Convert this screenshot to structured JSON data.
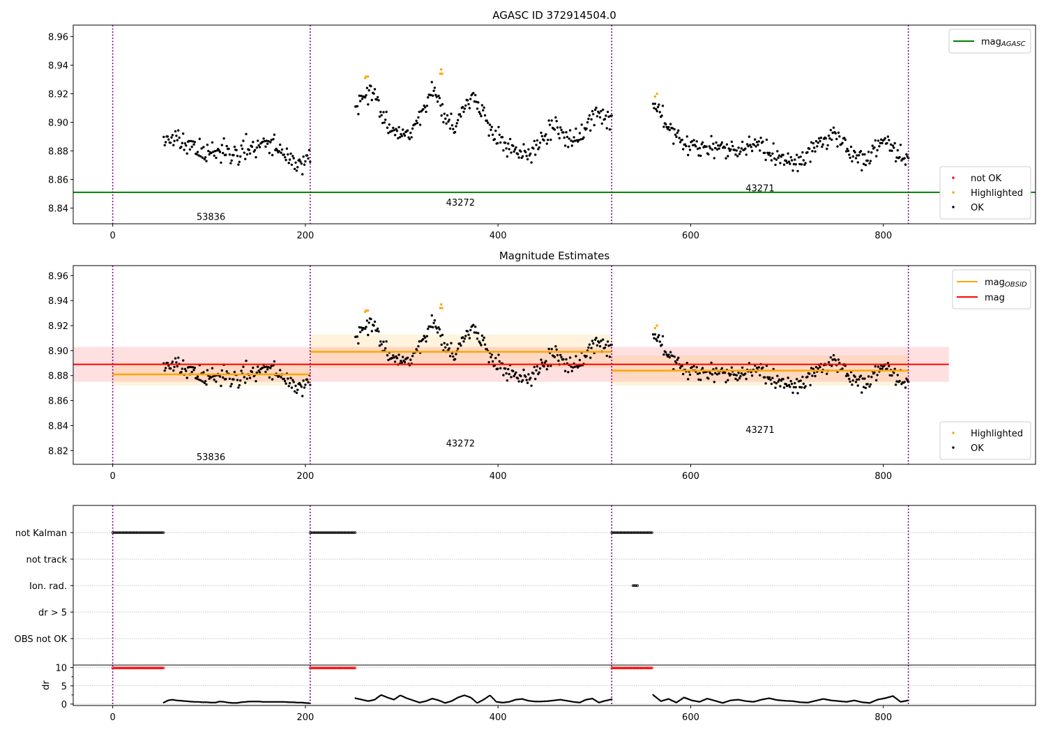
{
  "chart_data": [
    {
      "type": "scatter",
      "title": "AGASC ID 372914504.0",
      "xlim": [
        -41,
        958
      ],
      "ylim": [
        8.829,
        8.968
      ],
      "xticks": [
        0,
        200,
        400,
        600,
        800
      ],
      "yticks": [
        8.84,
        8.86,
        8.88,
        8.9,
        8.92,
        8.94,
        8.96
      ],
      "ytick_labels": [
        "8.84",
        "8.86",
        "8.88",
        "8.90",
        "8.92",
        "8.94",
        "8.96"
      ],
      "xtick_labels": [
        "0",
        "200",
        "400",
        "600",
        "800"
      ],
      "mag_agasc": 8.851,
      "obsid_boundaries": [
        0,
        205,
        518,
        826
      ],
      "obsid_labels": [
        {
          "text": "53836",
          "x": 102,
          "y": 8.834
        },
        {
          "text": "43272",
          "x": 361,
          "y": 8.844
        },
        {
          "text": "43271",
          "x": 672,
          "y": 8.854
        }
      ],
      "legend_lines": [
        {
          "label": "mag",
          "sub": "AGASC",
          "color": "#008000"
        }
      ],
      "legend_points": [
        {
          "label": "not OK",
          "color": "#ff0000"
        },
        {
          "label": "Highlighted",
          "color": "#ffa500"
        },
        {
          "label": "OK",
          "color": "#000000"
        }
      ]
    },
    {
      "type": "scatter",
      "title": "Magnitude Estimates",
      "xlim": [
        -41,
        958
      ],
      "ylim": [
        8.809,
        8.968
      ],
      "xticks": [
        0,
        200,
        400,
        600,
        800
      ],
      "xtick_labels": [
        "0",
        "200",
        "400",
        "600",
        "800"
      ],
      "yticks": [
        8.82,
        8.84,
        8.86,
        8.88,
        8.9,
        8.92,
        8.94,
        8.96
      ],
      "ytick_labels": [
        "8.82",
        "8.84",
        "8.86",
        "8.88",
        "8.90",
        "8.92",
        "8.94",
        "8.96"
      ],
      "mag": 8.889,
      "mag_band": [
        8.875,
        8.903
      ],
      "mag_extent": [
        -41,
        868
      ],
      "obsid_means": [
        {
          "x0": 0,
          "x1": 205,
          "mag": 8.881,
          "band": [
            8.872,
            8.89
          ]
        },
        {
          "x0": 205,
          "x1": 518,
          "mag": 8.899,
          "band": [
            8.886,
            8.913
          ]
        },
        {
          "x0": 518,
          "x1": 826,
          "mag": 8.884,
          "band": [
            8.872,
            8.896
          ]
        }
      ],
      "obsid_boundaries": [
        0,
        205,
        518,
        826
      ],
      "obsid_labels": [
        {
          "text": "53836",
          "x": 102,
          "y": 8.815
        },
        {
          "text": "43272",
          "x": 361,
          "y": 8.826
        },
        {
          "text": "43271",
          "x": 672,
          "y": 8.837
        }
      ],
      "legend_lines": [
        {
          "label": "mag",
          "sub": "OBSID",
          "color": "#ffa500"
        },
        {
          "label": "mag",
          "sub": "",
          "color": "#ff0000"
        }
      ],
      "legend_points": [
        {
          "label": "Highlighted",
          "color": "#ffa500"
        },
        {
          "label": "OK",
          "color": "#000000"
        }
      ]
    },
    {
      "type": "scatter",
      "title": "",
      "flag_rows": [
        "not Kalman",
        "not track",
        "Ion. rad.",
        "dr > 5",
        "OBS not OK"
      ],
      "flag_ranges": [
        {
          "row": "not Kalman",
          "segments": [
            [
              0,
              53
            ],
            [
              205,
              252
            ],
            [
              518,
              561
            ]
          ]
        },
        {
          "row": "Ion. rad.",
          "segments": [
            [
              540,
              546
            ]
          ]
        }
      ],
      "dr_ylabel": "dr",
      "dr_yticks": [
        0,
        5,
        10
      ],
      "dr_ytick_labels": [
        "0",
        "5",
        "10"
      ],
      "dr_ylim": [
        -0.4,
        10.7
      ],
      "dr_clipped_ranges": [
        [
          0,
          53
        ],
        [
          205,
          252
        ],
        [
          518,
          561
        ]
      ],
      "xticks": [
        0,
        200,
        400,
        600,
        800
      ],
      "xtick_labels": [
        "0",
        "200",
        "400",
        "600",
        "800"
      ],
      "obsid_boundaries": [
        0,
        205,
        518,
        826
      ]
    }
  ],
  "series": {
    "seg1": {
      "x0": 53,
      "x1": 205,
      "n": 152,
      "base": [
        8.887,
        8.888,
        8.889,
        8.887,
        8.886,
        8.885,
        8.884,
        8.882,
        8.88,
        8.879,
        8.878,
        8.879,
        8.88,
        8.881,
        8.88,
        8.879,
        8.878,
        8.878,
        8.879,
        8.88,
        8.882,
        8.884,
        8.885,
        8.886,
        8.886,
        8.885,
        8.883,
        8.88,
        8.876,
        8.872,
        8.87,
        8.87,
        8.872,
        8.874,
        8.875
      ],
      "noise": 0.007,
      "seed": 11
    },
    "seg2": {
      "x0": 252,
      "x1": 518,
      "n": 266,
      "base": [
        8.908,
        8.915,
        8.922,
        8.918,
        8.905,
        8.897,
        8.893,
        8.892,
        8.895,
        8.9,
        8.905,
        8.915,
        8.922,
        8.91,
        8.9,
        8.898,
        8.905,
        8.915,
        8.918,
        8.91,
        8.9,
        8.893,
        8.889,
        8.885,
        8.882,
        8.88,
        8.878,
        8.88,
        8.885,
        8.892,
        8.897,
        8.895,
        8.888,
        8.885,
        8.89,
        8.897,
        8.903,
        8.905,
        8.903,
        8.902
      ],
      "noise": 0.0065,
      "seed": 23
    },
    "seg3": {
      "x0": 561,
      "x1": 826,
      "n": 264,
      "base": [
        8.907,
        8.905,
        8.898,
        8.892,
        8.888,
        8.885,
        8.883,
        8.882,
        8.883,
        8.884,
        8.882,
        8.88,
        8.881,
        8.884,
        8.886,
        8.883,
        8.879,
        8.876,
        8.875,
        8.873,
        8.872,
        8.874,
        8.88,
        8.885,
        8.888,
        8.89,
        8.889,
        8.885,
        8.88,
        8.876,
        8.874,
        8.878,
        8.885,
        8.89,
        8.88,
        8.874,
        8.873
      ],
      "noise": 0.0065,
      "seed": 37
    },
    "highlighted": [
      [
        262,
        8.931
      ],
      [
        263,
        8.932
      ],
      [
        265,
        8.932
      ],
      [
        340,
        8.934
      ],
      [
        342,
        8.934
      ],
      [
        341,
        8.937
      ],
      [
        563,
        8.918
      ],
      [
        565,
        8.92
      ]
    ],
    "dr_seg1": [
      0.4,
      1.0,
      1.2,
      1.0,
      0.9,
      0.8,
      0.7,
      0.6,
      0.6,
      0.5,
      0.5,
      0.4,
      0.4,
      0.7,
      0.6,
      0.4,
      0.3,
      0.3,
      0.5,
      0.6,
      0.7,
      0.7,
      0.7,
      0.6,
      0.6,
      0.6,
      0.6,
      0.6,
      0.6,
      0.5,
      0.5,
      0.4,
      0.4,
      0.3,
      0.2
    ],
    "dr_seg2": [
      1.6,
      1.2,
      0.8,
      1.2,
      2.5,
      1.8,
      1.2,
      2.4,
      1.6,
      1.0,
      0.4,
      0.8,
      1.5,
      1.0,
      0.3,
      0.8,
      1.8,
      2.4,
      1.8,
      0.3,
      1.2,
      2.4,
      0.6,
      0.4,
      0.6,
      1.2,
      1.4,
      0.9,
      0.7,
      0.7,
      0.8,
      1.0,
      1.2,
      0.9,
      0.6,
      0.4,
      1.2,
      1.5,
      0.4,
      0.9,
      1.3
    ],
    "dr_seg3": [
      2.5,
      0.8,
      1.4,
      0.4,
      1.8,
      1.0,
      0.6,
      1.5,
      0.9,
      0.3,
      1.0,
      1.2,
      0.8,
      0.6,
      1.2,
      1.6,
      1.1,
      0.9,
      0.8,
      0.5,
      0.4,
      0.9,
      1.4,
      1.0,
      0.8,
      0.6,
      1.0,
      0.5,
      0.3,
      1.2,
      1.6,
      2.2,
      0.6,
      1.0
    ]
  }
}
